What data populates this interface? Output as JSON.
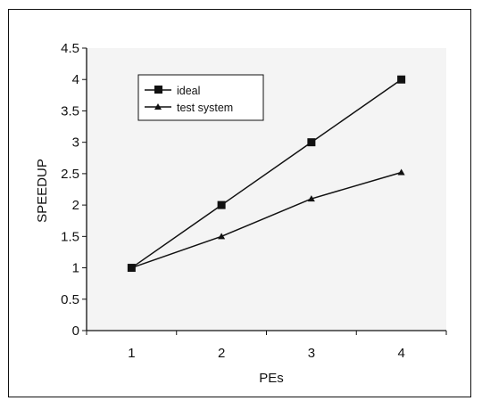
{
  "chart_data": {
    "type": "line",
    "title": "",
    "xlabel": "PEs",
    "ylabel": "SPEEDUP",
    "x": [
      1,
      2,
      3,
      4
    ],
    "x_tick_labels": [
      "1",
      "2",
      "3",
      "4"
    ],
    "xlim": [
      0.5,
      4.5
    ],
    "ylim": [
      0,
      4.5
    ],
    "y_tick_labels": [
      "0",
      "0.5",
      "1",
      "1.5",
      "2",
      "2.5",
      "3",
      "3.5",
      "4",
      "4.5"
    ],
    "y_ticks": [
      0,
      0.5,
      1,
      1.5,
      2,
      2.5,
      3,
      3.5,
      4,
      4.5
    ],
    "grid": false,
    "legend_position": "top-left",
    "series": [
      {
        "name": "ideal",
        "marker": "square",
        "values": [
          1,
          2,
          3,
          4
        ]
      },
      {
        "name": "test system",
        "marker": "triangle",
        "values": [
          1,
          1.5,
          2.1,
          2.52
        ]
      }
    ],
    "colors": {
      "line": "#111111",
      "plot_background": "#f4f4f4"
    }
  }
}
